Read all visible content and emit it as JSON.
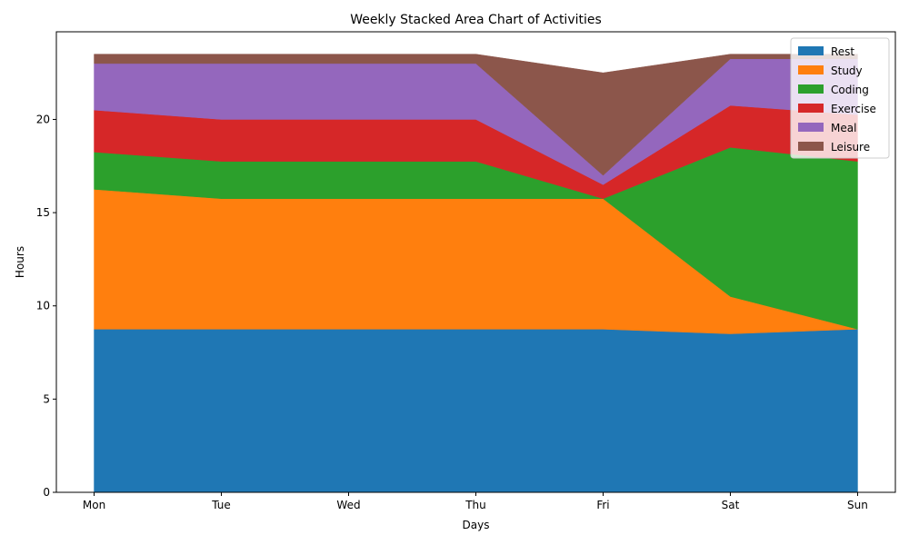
{
  "chart_data": {
    "type": "area",
    "stacked": true,
    "title": "Weekly Stacked Area Chart of Activities",
    "xlabel": "Days",
    "ylabel": "Hours",
    "categories": [
      "Mon",
      "Tue",
      "Wed",
      "Thu",
      "Fri",
      "Sat",
      "Sun"
    ],
    "ylim": [
      0,
      24.7
    ],
    "yticks": [
      0,
      5,
      10,
      15,
      20
    ],
    "grid": false,
    "legend_position": "top-right",
    "series": [
      {
        "name": "Rest",
        "color": "#1f77b4",
        "values": [
          8.75,
          8.75,
          8.75,
          8.75,
          8.75,
          8.5,
          8.75
        ]
      },
      {
        "name": "Study",
        "color": "#ff7f0e",
        "values": [
          7.5,
          7.0,
          7.0,
          7.0,
          7.0,
          2.0,
          0.0
        ]
      },
      {
        "name": "Coding",
        "color": "#2ca02c",
        "values": [
          2.0,
          2.0,
          2.0,
          2.0,
          0.0,
          8.0,
          9.0
        ]
      },
      {
        "name": "Exercise",
        "color": "#d62728",
        "values": [
          2.25,
          2.25,
          2.25,
          2.25,
          0.75,
          2.25,
          2.5
        ]
      },
      {
        "name": "Meal",
        "color": "#9467bd",
        "values": [
          2.5,
          3.0,
          3.0,
          3.0,
          0.5,
          2.5,
          3.0
        ]
      },
      {
        "name": "Leisure",
        "color": "#8c564b",
        "values": [
          0.5,
          0.5,
          0.5,
          0.5,
          5.5,
          0.25,
          0.25
        ]
      }
    ]
  }
}
